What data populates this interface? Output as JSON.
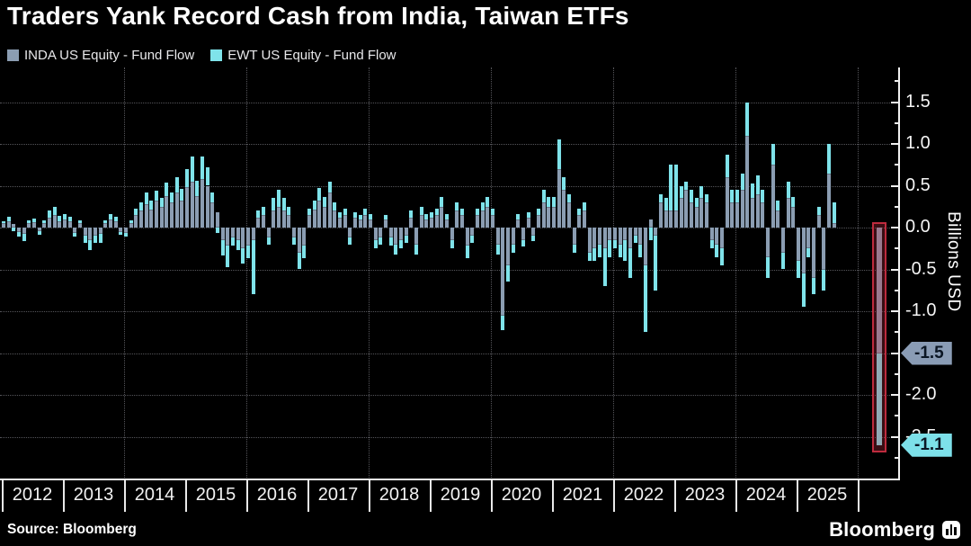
{
  "header": {
    "title": "Traders Yank Record Cash from India, Taiwan ETFs",
    "legend": [
      {
        "label": "INDA US Equity - Fund Flow",
        "color": "#8B9DB2"
      },
      {
        "label": "EWT US Equity - Fund Flow",
        "color": "#7FE3EA"
      }
    ]
  },
  "chart_data": {
    "type": "bar",
    "subtype": "stacked-monthly",
    "title": "Traders Yank Record Cash from India, Taiwan ETFs",
    "frequency": "monthly",
    "start_month": "2012-01",
    "end_month": "2025-09",
    "xlabel": "",
    "ylabel": "Billions USD",
    "ylim": [
      -3.0,
      1.9
    ],
    "grid": "dotted",
    "legend_position": "top-left",
    "x_years": [
      "2012",
      "2013",
      "2014",
      "2015",
      "2016",
      "2017",
      "2018",
      "2019",
      "2020",
      "2021",
      "2022",
      "2023",
      "2024",
      "2025"
    ],
    "xgrid_years": [
      2014,
      2016,
      2018,
      2020,
      2022,
      2024,
      2026
    ],
    "yticks": [
      "1.5",
      "1.0",
      "0.5",
      "0.0",
      "-0.5",
      "-1.0",
      "-1.5",
      "-2.0",
      "-2.5"
    ],
    "series": [
      {
        "name": "INDA US Equity - Fund Flow",
        "color": "#8B9DB2",
        "values": [
          0.05,
          0.08,
          0.04,
          -0.05,
          -0.08,
          0.05,
          0.06,
          -0.04,
          0.05,
          0.12,
          0.15,
          0.08,
          0.1,
          0.08,
          -0.06,
          0.05,
          -0.1,
          -0.15,
          -0.1,
          -0.08,
          0.05,
          0.1,
          0.08,
          -0.05,
          -0.06,
          0.05,
          0.15,
          0.2,
          0.28,
          0.22,
          0.32,
          0.25,
          0.38,
          0.3,
          0.42,
          0.32,
          0.48,
          0.55,
          0.38,
          0.58,
          0.5,
          0.3,
          0.18,
          -0.15,
          -0.22,
          -0.12,
          -0.15,
          -0.25,
          -0.22,
          -0.15,
          0.12,
          0.15,
          -0.12,
          0.2,
          0.25,
          0.2,
          0.15,
          -0.12,
          -0.3,
          -0.22,
          0.15,
          0.22,
          0.32,
          0.25,
          0.42,
          0.2,
          0.12,
          0.15,
          -0.12,
          0.12,
          0.1,
          0.15,
          0.1,
          -0.15,
          -0.12,
          0.1,
          -0.12,
          -0.2,
          -0.15,
          -0.1,
          0.12,
          -0.2,
          0.15,
          0.1,
          0.12,
          0.15,
          0.25,
          0.1,
          -0.15,
          0.2,
          0.15,
          -0.22,
          -0.1,
          0.15,
          0.2,
          0.25,
          0.15,
          -0.2,
          -1.05,
          -0.45,
          -0.2,
          0.1,
          -0.15,
          0.12,
          -0.1,
          0.15,
          0.3,
          0.25,
          0.25,
          0.7,
          0.45,
          0.3,
          -0.2,
          0.15,
          0.2,
          -0.3,
          -0.25,
          -0.2,
          -0.25,
          -0.15,
          -0.15,
          -0.2,
          -0.15,
          -0.25,
          -0.1,
          -0.2,
          -0.45,
          0.1,
          -0.1,
          0.3,
          0.2,
          0.2,
          0.2,
          0.35,
          0.45,
          0.3,
          0.25,
          0.35,
          0.3,
          -0.15,
          -0.2,
          -0.25,
          0.6,
          0.3,
          0.3,
          0.45,
          1.1,
          0.35,
          0.4,
          0.3,
          -0.35,
          0.75,
          0.2,
          -0.3,
          0.35,
          0.25,
          -0.4,
          -0.55,
          -0.25,
          -0.6,
          0.15,
          -0.5,
          0.65,
          0.05,
          -1.5
        ]
      },
      {
        "name": "EWT US Equity - Fund Flow",
        "color": "#7FE3EA",
        "values": [
          0.03,
          0.05,
          -0.04,
          -0.06,
          -0.08,
          0.04,
          0.05,
          -0.05,
          0.04,
          0.08,
          0.1,
          0.06,
          0.06,
          0.05,
          -0.05,
          0.04,
          -0.08,
          -0.12,
          -0.08,
          -0.1,
          0.04,
          0.06,
          0.05,
          -0.04,
          -0.05,
          0.04,
          0.08,
          0.1,
          0.14,
          0.1,
          0.12,
          0.1,
          0.16,
          0.12,
          0.18,
          0.14,
          0.22,
          0.3,
          0.18,
          0.27,
          0.22,
          0.12,
          -0.06,
          -0.18,
          -0.25,
          -0.1,
          -0.12,
          -0.18,
          -0.15,
          -0.65,
          0.08,
          0.1,
          -0.08,
          0.15,
          0.2,
          0.15,
          0.1,
          -0.08,
          -0.2,
          -0.15,
          0.08,
          0.1,
          0.15,
          0.12,
          0.13,
          0.1,
          0.06,
          0.08,
          -0.08,
          0.06,
          0.05,
          0.08,
          0.06,
          -0.1,
          -0.08,
          0.05,
          -0.1,
          -0.12,
          -0.1,
          -0.08,
          0.08,
          -0.12,
          0.1,
          0.06,
          0.06,
          0.08,
          0.12,
          0.06,
          -0.1,
          0.1,
          0.08,
          -0.15,
          -0.08,
          0.08,
          0.1,
          0.12,
          0.08,
          -0.12,
          -0.18,
          -0.2,
          -0.1,
          0.06,
          -0.08,
          0.06,
          -0.06,
          0.08,
          0.15,
          0.12,
          0.12,
          0.35,
          0.15,
          0.1,
          -0.1,
          0.08,
          0.1,
          -0.1,
          -0.15,
          -0.15,
          -0.45,
          -0.2,
          -0.1,
          -0.15,
          -0.25,
          -0.35,
          -0.08,
          -0.15,
          -0.8,
          -0.15,
          -0.65,
          0.1,
          0.15,
          0.55,
          0.55,
          0.15,
          0.1,
          0.15,
          0.1,
          0.15,
          0.1,
          -0.1,
          -0.15,
          -0.2,
          0.27,
          0.15,
          0.15,
          0.2,
          0.4,
          0.18,
          0.22,
          0.15,
          -0.25,
          0.25,
          0.12,
          -0.2,
          0.2,
          0.12,
          -0.2,
          -0.4,
          -0.1,
          -0.2,
          0.1,
          -0.25,
          0.35,
          0.25,
          -1.1
        ]
      }
    ],
    "latest_value_badges": [
      {
        "text": "-1.5",
        "anchor_value": -1.5,
        "bg": "#8A9CB5",
        "fg": "#0B1624"
      },
      {
        "text": "-1.1",
        "anchor_value": -2.6,
        "bg": "#7DE0E9",
        "fg": "#0B1624"
      }
    ],
    "highlight": {
      "target": "last-bar",
      "inda_value": -1.5,
      "ewt_value": -1.1,
      "total": -2.6,
      "border_color": "#BE2B3E",
      "fill_color": "rgba(190,43,62,0.30)"
    }
  },
  "footer": {
    "source": "Source: Bloomberg",
    "brand": "Bloomberg"
  }
}
